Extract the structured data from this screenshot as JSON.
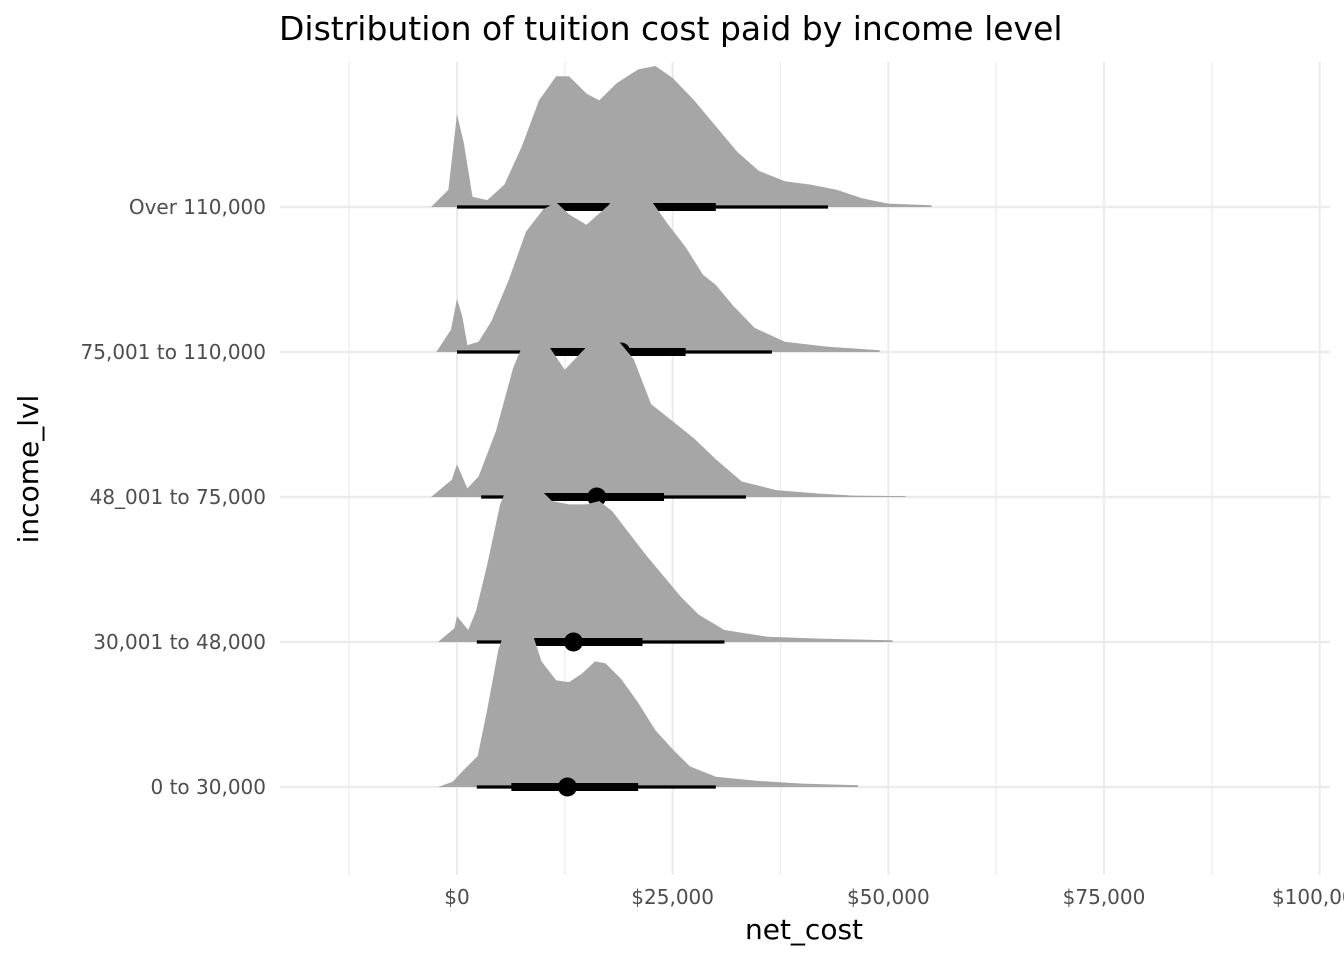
{
  "chart_data": {
    "type": "area",
    "subtype": "ridgeline density with median point and interval bars",
    "title": "Distribution of tuition cost paid by income level",
    "xlabel": "net_cost",
    "ylabel": "income_lvl",
    "xlim": [
      -25000,
      101000
    ],
    "x_ticks": [
      0,
      25000,
      50000,
      75000,
      100000
    ],
    "x_tick_labels": [
      "$0",
      "$25,000",
      "$50,000",
      "$75,000",
      "$100,000"
    ],
    "grid": true,
    "legend": "none",
    "colors": {
      "density_fill": "#a6a6a6",
      "interval": "#000000",
      "grid": "#ebebeb"
    },
    "series": [
      {
        "name": "0 to 30,000",
        "median": 12800,
        "interval_66": [
          6300,
          21000
        ],
        "interval_95": [
          2300,
          30000
        ],
        "density": [
          [
            -2200,
            0
          ],
          [
            -500,
            0.03
          ],
          [
            800,
            0.1
          ],
          [
            2400,
            0.18
          ],
          [
            3500,
            0.45
          ],
          [
            4800,
            0.8
          ],
          [
            6000,
            0.97
          ],
          [
            7200,
            1.0
          ],
          [
            8500,
            0.93
          ],
          [
            9800,
            0.73
          ],
          [
            11500,
            0.62
          ],
          [
            13000,
            0.61
          ],
          [
            14500,
            0.66
          ],
          [
            16000,
            0.73
          ],
          [
            17200,
            0.72
          ],
          [
            19000,
            0.63
          ],
          [
            21000,
            0.49
          ],
          [
            23000,
            0.33
          ],
          [
            25000,
            0.22
          ],
          [
            27000,
            0.12
          ],
          [
            30000,
            0.06
          ],
          [
            35000,
            0.035
          ],
          [
            40000,
            0.02
          ],
          [
            46500,
            0.01
          ]
        ]
      },
      {
        "name": "30,001 to 48,000",
        "median": 13500,
        "interval_66": [
          7000,
          21500
        ],
        "interval_95": [
          2300,
          31000
        ],
        "density": [
          [
            -2200,
            0
          ],
          [
            -300,
            0.08
          ],
          [
            0,
            0.15
          ],
          [
            800,
            0.1
          ],
          [
            1300,
            0.07
          ],
          [
            2200,
            0.18
          ],
          [
            3500,
            0.45
          ],
          [
            5000,
            0.8
          ],
          [
            6500,
            0.98
          ],
          [
            7500,
            1.0
          ],
          [
            9000,
            0.92
          ],
          [
            11000,
            0.82
          ],
          [
            13000,
            0.8
          ],
          [
            15000,
            0.8
          ],
          [
            16500,
            0.82
          ],
          [
            18000,
            0.76
          ],
          [
            20000,
            0.63
          ],
          [
            22000,
            0.5
          ],
          [
            24000,
            0.38
          ],
          [
            26000,
            0.26
          ],
          [
            28000,
            0.16
          ],
          [
            31000,
            0.07
          ],
          [
            36000,
            0.03
          ],
          [
            42000,
            0.02
          ],
          [
            50500,
            0.01
          ]
        ]
      },
      {
        "name": "48_001 to 75,000",
        "median": 16200,
        "interval_66": [
          9000,
          24000
        ],
        "interval_95": [
          2800,
          33500
        ],
        "density": [
          [
            -3000,
            0
          ],
          [
            -600,
            0.1
          ],
          [
            0,
            0.19
          ],
          [
            600,
            0.12
          ],
          [
            1200,
            0.05
          ],
          [
            2500,
            0.12
          ],
          [
            4500,
            0.38
          ],
          [
            6500,
            0.75
          ],
          [
            8000,
            0.93
          ],
          [
            9500,
            0.96
          ],
          [
            11000,
            0.85
          ],
          [
            12500,
            0.74
          ],
          [
            14000,
            0.82
          ],
          [
            16500,
            0.95
          ],
          [
            18500,
            0.92
          ],
          [
            20500,
            0.8
          ],
          [
            22500,
            0.54
          ],
          [
            25000,
            0.44
          ],
          [
            27500,
            0.34
          ],
          [
            30000,
            0.22
          ],
          [
            33000,
            0.09
          ],
          [
            37000,
            0.04
          ],
          [
            42000,
            0.02
          ],
          [
            46000,
            0.008
          ],
          [
            52000,
            0.005
          ]
        ]
      },
      {
        "name": "75,001 to 110,000",
        "median": 19000,
        "interval_66": [
          10800,
          26500
        ],
        "interval_95": [
          0,
          36500
        ],
        "density": [
          [
            -2400,
            0
          ],
          [
            -700,
            0.13
          ],
          [
            0,
            0.31
          ],
          [
            600,
            0.21
          ],
          [
            1200,
            0.04
          ],
          [
            2500,
            0.06
          ],
          [
            4000,
            0.18
          ],
          [
            6000,
            0.42
          ],
          [
            8000,
            0.7
          ],
          [
            10000,
            0.83
          ],
          [
            11500,
            0.87
          ],
          [
            13000,
            0.8
          ],
          [
            15000,
            0.74
          ],
          [
            17500,
            0.85
          ],
          [
            19500,
            0.97
          ],
          [
            20800,
            1.0
          ],
          [
            22500,
            0.88
          ],
          [
            24500,
            0.74
          ],
          [
            26500,
            0.61
          ],
          [
            28500,
            0.45
          ],
          [
            30000,
            0.39
          ],
          [
            32000,
            0.27
          ],
          [
            34500,
            0.14
          ],
          [
            38000,
            0.06
          ],
          [
            43000,
            0.03
          ],
          [
            49000,
            0.01
          ]
        ]
      },
      {
        "name": "Over 110,000",
        "median": 20500,
        "interval_66": [
          11500,
          30000
        ],
        "interval_95": [
          0,
          43000
        ],
        "density": [
          [
            -3000,
            0
          ],
          [
            -1000,
            0.1
          ],
          [
            0,
            0.54
          ],
          [
            800,
            0.37
          ],
          [
            1800,
            0.06
          ],
          [
            3500,
            0.04
          ],
          [
            5500,
            0.13
          ],
          [
            7500,
            0.35
          ],
          [
            9500,
            0.62
          ],
          [
            11500,
            0.76
          ],
          [
            13000,
            0.76
          ],
          [
            15000,
            0.66
          ],
          [
            16500,
            0.62
          ],
          [
            18500,
            0.72
          ],
          [
            21000,
            0.8
          ],
          [
            23000,
            0.82
          ],
          [
            25000,
            0.75
          ],
          [
            27500,
            0.62
          ],
          [
            30000,
            0.47
          ],
          [
            32500,
            0.32
          ],
          [
            35000,
            0.21
          ],
          [
            38000,
            0.15
          ],
          [
            41000,
            0.13
          ],
          [
            44000,
            0.1
          ],
          [
            47000,
            0.05
          ],
          [
            50000,
            0.02
          ],
          [
            55000,
            0.01
          ]
        ]
      }
    ]
  }
}
